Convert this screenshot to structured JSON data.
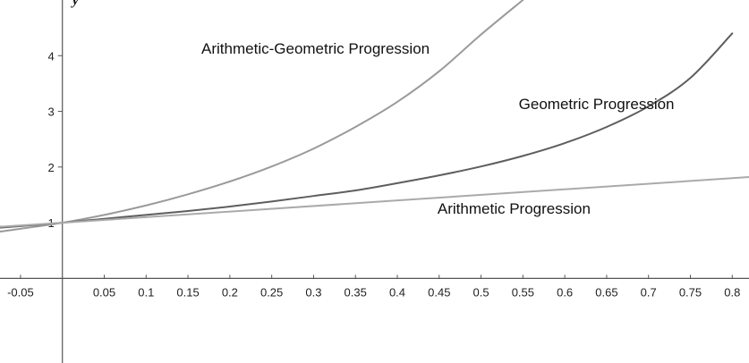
{
  "chart_data": {
    "type": "line",
    "title": "",
    "xlabel": "",
    "ylabel": "y",
    "xlim": [
      -0.0745,
      0.82
    ],
    "ylim": [
      -1.52,
      5.0
    ],
    "grid": false,
    "legend": "none",
    "x_ticks": [
      "-0.05",
      "0.05",
      "0.1",
      "0.15",
      "0.2",
      "0.25",
      "0.3",
      "0.35",
      "0.4",
      "0.45",
      "0.5",
      "0.55",
      "0.6",
      "0.65",
      "0.7",
      "0.75",
      "0.8"
    ],
    "y_ticks": [
      "1",
      "2",
      "3",
      "4"
    ],
    "series": [
      {
        "name": "Arithmetic-Geometric Progression",
        "color": "#9a9a9a",
        "x": [
          -0.0745,
          0.0,
          0.05,
          0.1,
          0.15,
          0.2,
          0.25,
          0.3,
          0.35,
          0.4,
          0.45,
          0.5,
          0.55
        ],
        "y": [
          0.84,
          1.0,
          1.14,
          1.31,
          1.51,
          1.74,
          2.01,
          2.33,
          2.72,
          3.17,
          3.72,
          4.38,
          5.0
        ]
      },
      {
        "name": "Geometric Progression",
        "color": "#5e5e5e",
        "x": [
          -0.0745,
          0.0,
          0.05,
          0.1,
          0.15,
          0.2,
          0.25,
          0.3,
          0.35,
          0.4,
          0.45,
          0.5,
          0.55,
          0.6,
          0.65,
          0.7,
          0.75,
          0.8
        ],
        "y": [
          0.91,
          1.0,
          1.07,
          1.14,
          1.21,
          1.29,
          1.38,
          1.48,
          1.58,
          1.71,
          1.85,
          2.01,
          2.2,
          2.43,
          2.72,
          3.09,
          3.6,
          4.4
        ]
      },
      {
        "name": "Arithmetic Progression",
        "color": "#aaaaaa",
        "x": [
          -0.0745,
          0.0,
          0.82
        ],
        "y": [
          0.93,
          1.0,
          1.82
        ]
      }
    ]
  }
}
